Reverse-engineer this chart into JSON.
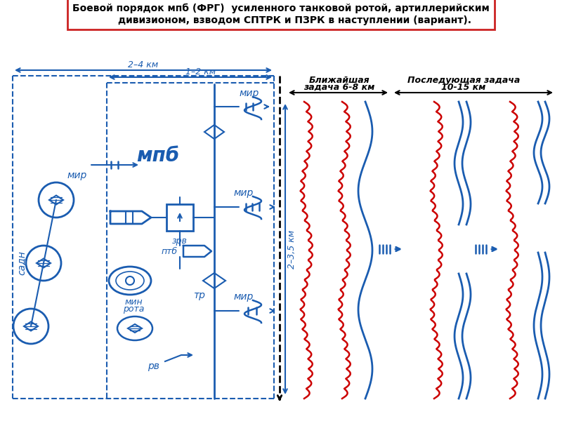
{
  "title": "Боевой порядок мпб (ФРГ)  усиленного танковой ротой, артиллерийским\n    дивизионом, взводом СПТРК и ПЗРК в наступлении (вариант).",
  "blue": "#1a5cb0",
  "red": "#cc0000",
  "black": "#000000",
  "bg": "#ffffff",
  "dim_24": "2–4 км",
  "dim_12": "1–2 км",
  "dim_235": "2–3,5 км",
  "label_near1": "Ближайшая",
  "label_near2": "задача 6-8 км",
  "label_far1": "Последующая задача",
  "label_far2": "10-15 км",
  "label_mpb": "мпб",
  "label_sadn": "садн",
  "label_zrv": "зрв",
  "label_ntb": "птб",
  "label_tr": "тр",
  "label_rv": "рв",
  "label_min1": "мин",
  "label_min2": "рота",
  "label_mir1": "мир",
  "label_mir2": "мир",
  "label_mir3": "мир",
  "label_mir4": "мир"
}
